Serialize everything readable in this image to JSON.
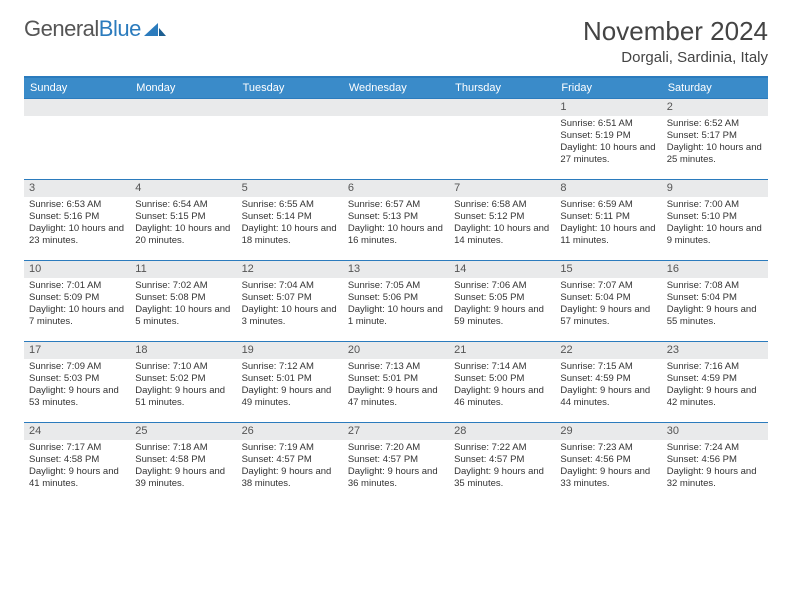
{
  "brand": {
    "name_a": "General",
    "name_b": "Blue"
  },
  "title": "November 2024",
  "location": "Dorgali, Sardinia, Italy",
  "colors": {
    "header_bg": "#3a8bc9",
    "rule": "#2b7bbd",
    "daynum_bg": "#e9eaeb",
    "text": "#333333"
  },
  "days_of_week": [
    "Sunday",
    "Monday",
    "Tuesday",
    "Wednesday",
    "Thursday",
    "Friday",
    "Saturday"
  ],
  "weeks": [
    [
      {
        "n": "",
        "sr": "",
        "ss": "",
        "dl": ""
      },
      {
        "n": "",
        "sr": "",
        "ss": "",
        "dl": ""
      },
      {
        "n": "",
        "sr": "",
        "ss": "",
        "dl": ""
      },
      {
        "n": "",
        "sr": "",
        "ss": "",
        "dl": ""
      },
      {
        "n": "",
        "sr": "",
        "ss": "",
        "dl": ""
      },
      {
        "n": "1",
        "sr": "Sunrise: 6:51 AM",
        "ss": "Sunset: 5:19 PM",
        "dl": "Daylight: 10 hours and 27 minutes."
      },
      {
        "n": "2",
        "sr": "Sunrise: 6:52 AM",
        "ss": "Sunset: 5:17 PM",
        "dl": "Daylight: 10 hours and 25 minutes."
      }
    ],
    [
      {
        "n": "3",
        "sr": "Sunrise: 6:53 AM",
        "ss": "Sunset: 5:16 PM",
        "dl": "Daylight: 10 hours and 23 minutes."
      },
      {
        "n": "4",
        "sr": "Sunrise: 6:54 AM",
        "ss": "Sunset: 5:15 PM",
        "dl": "Daylight: 10 hours and 20 minutes."
      },
      {
        "n": "5",
        "sr": "Sunrise: 6:55 AM",
        "ss": "Sunset: 5:14 PM",
        "dl": "Daylight: 10 hours and 18 minutes."
      },
      {
        "n": "6",
        "sr": "Sunrise: 6:57 AM",
        "ss": "Sunset: 5:13 PM",
        "dl": "Daylight: 10 hours and 16 minutes."
      },
      {
        "n": "7",
        "sr": "Sunrise: 6:58 AM",
        "ss": "Sunset: 5:12 PM",
        "dl": "Daylight: 10 hours and 14 minutes."
      },
      {
        "n": "8",
        "sr": "Sunrise: 6:59 AM",
        "ss": "Sunset: 5:11 PM",
        "dl": "Daylight: 10 hours and 11 minutes."
      },
      {
        "n": "9",
        "sr": "Sunrise: 7:00 AM",
        "ss": "Sunset: 5:10 PM",
        "dl": "Daylight: 10 hours and 9 minutes."
      }
    ],
    [
      {
        "n": "10",
        "sr": "Sunrise: 7:01 AM",
        "ss": "Sunset: 5:09 PM",
        "dl": "Daylight: 10 hours and 7 minutes."
      },
      {
        "n": "11",
        "sr": "Sunrise: 7:02 AM",
        "ss": "Sunset: 5:08 PM",
        "dl": "Daylight: 10 hours and 5 minutes."
      },
      {
        "n": "12",
        "sr": "Sunrise: 7:04 AM",
        "ss": "Sunset: 5:07 PM",
        "dl": "Daylight: 10 hours and 3 minutes."
      },
      {
        "n": "13",
        "sr": "Sunrise: 7:05 AM",
        "ss": "Sunset: 5:06 PM",
        "dl": "Daylight: 10 hours and 1 minute."
      },
      {
        "n": "14",
        "sr": "Sunrise: 7:06 AM",
        "ss": "Sunset: 5:05 PM",
        "dl": "Daylight: 9 hours and 59 minutes."
      },
      {
        "n": "15",
        "sr": "Sunrise: 7:07 AM",
        "ss": "Sunset: 5:04 PM",
        "dl": "Daylight: 9 hours and 57 minutes."
      },
      {
        "n": "16",
        "sr": "Sunrise: 7:08 AM",
        "ss": "Sunset: 5:04 PM",
        "dl": "Daylight: 9 hours and 55 minutes."
      }
    ],
    [
      {
        "n": "17",
        "sr": "Sunrise: 7:09 AM",
        "ss": "Sunset: 5:03 PM",
        "dl": "Daylight: 9 hours and 53 minutes."
      },
      {
        "n": "18",
        "sr": "Sunrise: 7:10 AM",
        "ss": "Sunset: 5:02 PM",
        "dl": "Daylight: 9 hours and 51 minutes."
      },
      {
        "n": "19",
        "sr": "Sunrise: 7:12 AM",
        "ss": "Sunset: 5:01 PM",
        "dl": "Daylight: 9 hours and 49 minutes."
      },
      {
        "n": "20",
        "sr": "Sunrise: 7:13 AM",
        "ss": "Sunset: 5:01 PM",
        "dl": "Daylight: 9 hours and 47 minutes."
      },
      {
        "n": "21",
        "sr": "Sunrise: 7:14 AM",
        "ss": "Sunset: 5:00 PM",
        "dl": "Daylight: 9 hours and 46 minutes."
      },
      {
        "n": "22",
        "sr": "Sunrise: 7:15 AM",
        "ss": "Sunset: 4:59 PM",
        "dl": "Daylight: 9 hours and 44 minutes."
      },
      {
        "n": "23",
        "sr": "Sunrise: 7:16 AM",
        "ss": "Sunset: 4:59 PM",
        "dl": "Daylight: 9 hours and 42 minutes."
      }
    ],
    [
      {
        "n": "24",
        "sr": "Sunrise: 7:17 AM",
        "ss": "Sunset: 4:58 PM",
        "dl": "Daylight: 9 hours and 41 minutes."
      },
      {
        "n": "25",
        "sr": "Sunrise: 7:18 AM",
        "ss": "Sunset: 4:58 PM",
        "dl": "Daylight: 9 hours and 39 minutes."
      },
      {
        "n": "26",
        "sr": "Sunrise: 7:19 AM",
        "ss": "Sunset: 4:57 PM",
        "dl": "Daylight: 9 hours and 38 minutes."
      },
      {
        "n": "27",
        "sr": "Sunrise: 7:20 AM",
        "ss": "Sunset: 4:57 PM",
        "dl": "Daylight: 9 hours and 36 minutes."
      },
      {
        "n": "28",
        "sr": "Sunrise: 7:22 AM",
        "ss": "Sunset: 4:57 PM",
        "dl": "Daylight: 9 hours and 35 minutes."
      },
      {
        "n": "29",
        "sr": "Sunrise: 7:23 AM",
        "ss": "Sunset: 4:56 PM",
        "dl": "Daylight: 9 hours and 33 minutes."
      },
      {
        "n": "30",
        "sr": "Sunrise: 7:24 AM",
        "ss": "Sunset: 4:56 PM",
        "dl": "Daylight: 9 hours and 32 minutes."
      }
    ]
  ]
}
